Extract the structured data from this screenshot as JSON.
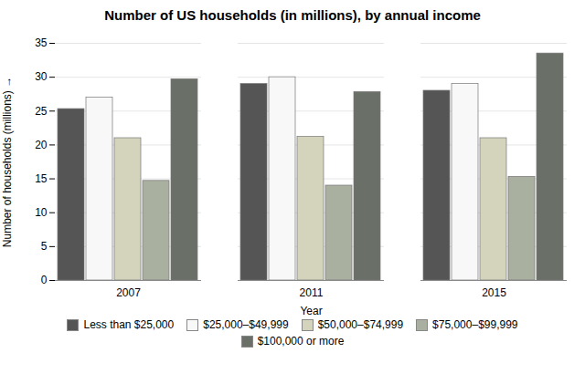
{
  "chart_data": {
    "type": "bar",
    "title": "Number of US households (in millions), by annual income",
    "xlabel": "Year",
    "ylabel": "Number of households (millions)",
    "categories": [
      "2007",
      "2011",
      "2015"
    ],
    "series": [
      {
        "name": "Less than $25,000",
        "color": "#555555",
        "values": [
          25.3,
          29.0,
          28.0
        ]
      },
      {
        "name": "$25,000–$49,999",
        "color": "#f8f8f8",
        "values": [
          27.0,
          30.0,
          29.0
        ]
      },
      {
        "name": "$50,000–$74,999",
        "color": "#d4d4bc",
        "values": [
          21.0,
          21.2,
          21.0
        ]
      },
      {
        "name": "$75,000–$99,999",
        "color": "#aab0a0",
        "values": [
          14.7,
          14.0,
          15.3
        ]
      },
      {
        "name": "$100,000 or more",
        "color": "#6a7068",
        "values": [
          29.7,
          27.8,
          33.5
        ]
      }
    ],
    "ylim": [
      0,
      35
    ],
    "yticks": [
      0,
      5,
      10,
      15,
      20,
      25,
      30,
      35
    ],
    "grid": true,
    "legend": "bottom"
  }
}
